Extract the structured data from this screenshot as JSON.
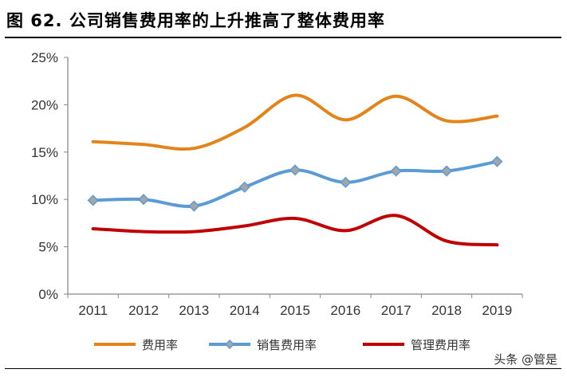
{
  "title": "图 62. 公司销售费用率的上升推高了整体费用率",
  "watermark": "头条 @管是",
  "chart_data": {
    "type": "line",
    "title": "图 62. 公司销售费用率的上升推高了整体费用率",
    "categories": [
      "2011",
      "2012",
      "2013",
      "2014",
      "2015",
      "2016",
      "2017",
      "2018",
      "2019"
    ],
    "ylim": [
      0,
      25
    ],
    "yticks": [
      "0%",
      "5%",
      "10%",
      "15%",
      "20%",
      "25%"
    ],
    "grid": false,
    "legend": "bottom",
    "smooth": true,
    "series": [
      {
        "name": "费用率",
        "color": "#E3841A",
        "marker": "none",
        "values": [
          16.1,
          15.8,
          15.4,
          17.6,
          21.0,
          18.4,
          20.9,
          18.3,
          18.8
        ]
      },
      {
        "name": "销售费用率",
        "color": "#5B9BD5",
        "marker": "diamond",
        "marker_fill": "#A5A5A5",
        "values": [
          9.9,
          10.0,
          9.3,
          11.3,
          13.1,
          11.8,
          13.0,
          13.0,
          14.0
        ]
      },
      {
        "name": "管理费用率",
        "color": "#C00000",
        "marker": "none",
        "values": [
          6.9,
          6.6,
          6.6,
          7.2,
          8.0,
          6.7,
          8.3,
          5.6,
          5.2
        ]
      }
    ]
  }
}
